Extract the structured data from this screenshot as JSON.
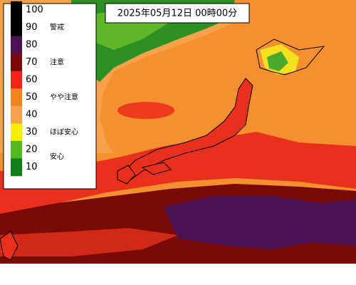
{
  "header": {
    "title": "2025年05月12日 00時00分"
  },
  "legend": {
    "levels": [
      {
        "value": 100,
        "color": "#000000"
      },
      {
        "value": 90,
        "color": "#000000",
        "note": "警戒"
      },
      {
        "value": 80,
        "color": "#4a1252"
      },
      {
        "value": 70,
        "color": "#7a0a06",
        "note": "注意"
      },
      {
        "value": 60,
        "color": "#f0261a"
      },
      {
        "value": 50,
        "color": "#f5841e",
        "note": "やや注意"
      },
      {
        "value": 40,
        "color": "#f7a24a"
      },
      {
        "value": 30,
        "color": "#f5f000",
        "note": "ほぼ安心"
      },
      {
        "value": 20,
        "color": "#54b81e",
        "note": "安心"
      },
      {
        "value": 10,
        "color": "#14801a"
      }
    ]
  }
}
